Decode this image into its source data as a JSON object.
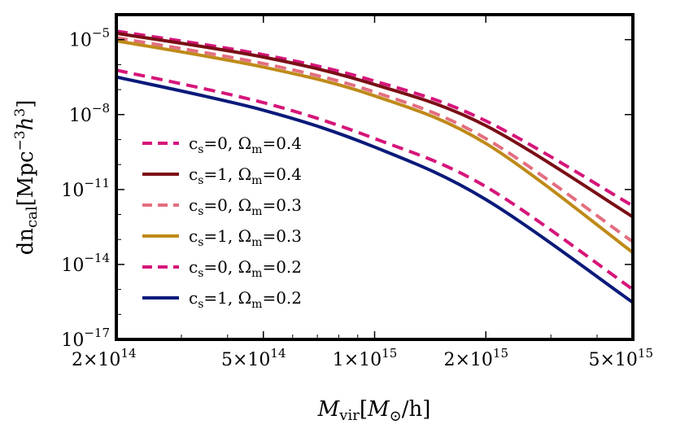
{
  "chart_data": {
    "type": "line",
    "xlabel": "M_vir[M_⊙/h]",
    "ylabel": "dn_cal[Mpc^-3 h^3]",
    "x_scale": "log",
    "y_scale": "log",
    "xlim": [
      200000000000000.0,
      5000000000000000.0
    ],
    "ylim": [
      1e-17,
      0.0001
    ],
    "x_ticks": [
      {
        "value": 200000000000000.0,
        "label": "2×10",
        "exp": "14"
      },
      {
        "value": 500000000000000.0,
        "label": "5×10",
        "exp": "14"
      },
      {
        "value": 1000000000000000.0,
        "label": "1×10",
        "exp": "15"
      },
      {
        "value": 2000000000000000.0,
        "label": "2×10",
        "exp": "15"
      },
      {
        "value": 5000000000000000.0,
        "label": "5×10",
        "exp": "15"
      }
    ],
    "y_ticks": [
      {
        "value": 1e-05,
        "label": "10",
        "exp": "−5"
      },
      {
        "value": 1e-08,
        "label": "10",
        "exp": "−8"
      },
      {
        "value": 1e-11,
        "label": "10",
        "exp": "−11"
      },
      {
        "value": 1e-14,
        "label": "10",
        "exp": "−14"
      },
      {
        "value": 1e-17,
        "label": "10",
        "exp": "−17"
      }
    ],
    "grid": false,
    "legend_position": "left",
    "series": [
      {
        "name": "c_s=0, Ω_m=0.4",
        "cs": "0",
        "om": "0.4",
        "color": "#d6157a",
        "dash": "dashed",
        "points": [
          [
            200000000000000.0,
            2.2e-05
          ],
          [
            500000000000000.0,
            2.5e-06
          ],
          [
            1000000000000000.0,
            2.2e-07
          ],
          [
            2000000000000000.0,
            5.6e-09
          ],
          [
            5000000000000000.0,
            2.2e-12
          ]
        ]
      },
      {
        "name": "c_s=1, Ω_m=0.4",
        "cs": "1",
        "om": "0.4",
        "color": "#7a0f16",
        "dash": "solid",
        "points": [
          [
            200000000000000.0,
            1.8e-05
          ],
          [
            500000000000000.0,
            2e-06
          ],
          [
            1000000000000000.0,
            1.6e-07
          ],
          [
            2000000000000000.0,
            3.6e-09
          ],
          [
            5000000000000000.0,
            8e-13
          ]
        ]
      },
      {
        "name": "c_s=0, Ω_m=0.3",
        "cs": "0",
        "om": "0.3",
        "color": "#e36e80",
        "dash": "dashed",
        "points": [
          [
            200000000000000.0,
            1.2e-05
          ],
          [
            500000000000000.0,
            1.1e-06
          ],
          [
            1000000000000000.0,
            8e-08
          ],
          [
            2000000000000000.0,
            1.1e-09
          ],
          [
            5000000000000000.0,
            8e-14
          ]
        ]
      },
      {
        "name": "c_s=1, Ω_m=0.3",
        "cs": "1",
        "om": "0.3",
        "color": "#bf8a1a",
        "dash": "solid",
        "points": [
          [
            200000000000000.0,
            9e-06
          ],
          [
            500000000000000.0,
            8e-07
          ],
          [
            1000000000000000.0,
            5.6e-08
          ],
          [
            2000000000000000.0,
            7e-10
          ],
          [
            5000000000000000.0,
            3e-14
          ]
        ]
      },
      {
        "name": "c_s=0, Ω_m=0.2",
        "cs": "0",
        "om": "0.2",
        "color": "#d6157a",
        "dash": "dashed",
        "points": [
          [
            200000000000000.0,
            6e-07
          ],
          [
            500000000000000.0,
            3e-08
          ],
          [
            1000000000000000.0,
            1.1e-09
          ],
          [
            2000000000000000.0,
            1.3e-11
          ],
          [
            5000000000000000.0,
            1e-15
          ]
        ]
      },
      {
        "name": "c_s=1, Ω_m=0.2",
        "cs": "1",
        "om": "0.2",
        "color": "#0a1a7a",
        "dash": "solid",
        "points": [
          [
            200000000000000.0,
            3.2e-07
          ],
          [
            500000000000000.0,
            1.5e-08
          ],
          [
            1000000000000000.0,
            5e-10
          ],
          [
            2000000000000000.0,
            4e-12
          ],
          [
            5000000000000000.0,
            3e-16
          ]
        ]
      }
    ]
  }
}
